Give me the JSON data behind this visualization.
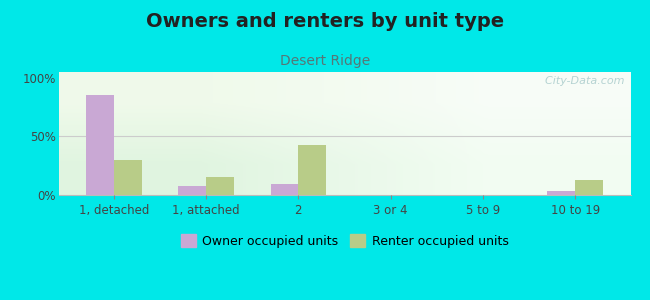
{
  "title": "Owners and renters by unit type",
  "subtitle": "Desert Ridge",
  "categories": [
    "1, detached",
    "1, attached",
    "2",
    "3 or 4",
    "5 to 9",
    "10 to 19"
  ],
  "owner_values": [
    85,
    8,
    9,
    0,
    0,
    3
  ],
  "renter_values": [
    30,
    15,
    43,
    0,
    0,
    13
  ],
  "owner_color": "#c9a8d4",
  "renter_color": "#b8cc88",
  "background_outer": "#00e8e8",
  "yticks": [
    0,
    50,
    100
  ],
  "ytick_labels": [
    "0%",
    "50%",
    "100%"
  ],
  "ylim": [
    0,
    105
  ],
  "bar_width": 0.3,
  "legend_owner": "Owner occupied units",
  "legend_renter": "Renter occupied units",
  "watermark": "  City-Data.com",
  "title_fontsize": 14,
  "subtitle_fontsize": 10,
  "tick_fontsize": 8.5,
  "legend_fontsize": 9
}
